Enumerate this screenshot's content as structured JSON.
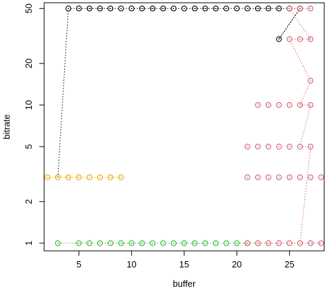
{
  "chart_data": {
    "type": "scatter",
    "title": "",
    "xlabel": "buffer",
    "ylabel": "bitrate",
    "xlim": [
      1.7,
      28.3
    ],
    "ylim": [
      0.88,
      55
    ],
    "y_scale": "log",
    "x_ticks": [
      5,
      10,
      15,
      20,
      25
    ],
    "y_ticks": [
      1,
      2,
      5,
      10,
      20,
      50
    ],
    "grid": false,
    "legend": "none",
    "series": [
      {
        "color": "#000000",
        "points": [
          [
            4,
            50
          ],
          [
            5,
            50
          ],
          [
            6,
            50
          ],
          [
            7,
            50
          ],
          [
            8,
            50
          ],
          [
            9,
            50
          ],
          [
            10,
            50
          ],
          [
            11,
            50
          ],
          [
            12,
            50
          ],
          [
            13,
            50
          ],
          [
            14,
            50
          ],
          [
            15,
            50
          ],
          [
            16,
            50
          ],
          [
            17,
            50
          ],
          [
            18,
            50
          ],
          [
            19,
            50
          ],
          [
            20,
            50
          ],
          [
            21,
            50
          ],
          [
            22,
            50
          ],
          [
            23,
            50
          ],
          [
            24,
            50
          ],
          [
            25,
            50
          ],
          [
            26,
            50
          ],
          [
            24,
            30
          ]
        ],
        "path": [
          [
            3,
            3
          ],
          [
            4,
            50
          ],
          [
            26,
            50
          ],
          [
            24,
            30
          ],
          [
            26,
            50
          ]
        ]
      },
      {
        "color": "#e8a800",
        "points": [
          [
            2,
            3
          ],
          [
            3,
            3
          ],
          [
            4,
            3
          ],
          [
            5,
            3
          ],
          [
            6,
            3
          ],
          [
            7,
            3
          ],
          [
            8,
            3
          ],
          [
            9,
            3
          ]
        ],
        "path": [
          [
            2,
            3
          ],
          [
            9,
            3
          ]
        ]
      },
      {
        "color": "#3cb43c",
        "points": [
          [
            3,
            1
          ],
          [
            5,
            1
          ],
          [
            6,
            1
          ],
          [
            7,
            1
          ],
          [
            8,
            1
          ],
          [
            9,
            1
          ],
          [
            10,
            1
          ],
          [
            11,
            1
          ],
          [
            12,
            1
          ],
          [
            13,
            1
          ],
          [
            14,
            1
          ],
          [
            15,
            1
          ],
          [
            16,
            1
          ],
          [
            17,
            1
          ],
          [
            18,
            1
          ],
          [
            19,
            1
          ],
          [
            20,
            1
          ],
          [
            21,
            1
          ]
        ],
        "path": [
          [
            3,
            1
          ],
          [
            21,
            1
          ]
        ]
      },
      {
        "color": "#d06070",
        "points": [
          [
            21,
            1
          ],
          [
            22,
            1
          ],
          [
            23,
            1
          ],
          [
            24,
            1
          ],
          [
            25,
            1
          ],
          [
            26,
            1
          ],
          [
            27,
            1
          ],
          [
            28,
            1
          ],
          [
            21,
            3
          ],
          [
            22,
            3
          ],
          [
            23,
            3
          ],
          [
            24,
            3
          ],
          [
            25,
            3
          ],
          [
            26,
            3
          ],
          [
            27,
            3
          ],
          [
            28,
            3
          ],
          [
            21,
            5
          ],
          [
            22,
            5
          ],
          [
            23,
            5
          ],
          [
            24,
            5
          ],
          [
            25,
            5
          ],
          [
            26,
            5
          ],
          [
            27,
            5
          ],
          [
            22,
            10
          ],
          [
            23,
            10
          ],
          [
            24,
            10
          ],
          [
            25,
            10
          ],
          [
            26,
            10
          ],
          [
            27,
            10
          ],
          [
            27,
            15
          ],
          [
            25,
            30
          ],
          [
            26,
            30
          ],
          [
            27,
            30
          ],
          [
            25,
            50
          ],
          [
            26,
            50
          ],
          [
            27,
            50
          ]
        ],
        "path": [
          [
            21,
            1
          ],
          [
            28,
            1
          ],
          [
            26,
            1
          ],
          [
            27,
            5
          ],
          [
            26,
            5
          ],
          [
            27,
            10
          ],
          [
            26,
            10
          ],
          [
            27,
            15
          ],
          [
            25,
            30
          ],
          [
            27,
            30
          ],
          [
            25,
            50
          ],
          [
            27,
            50
          ]
        ]
      }
    ]
  }
}
